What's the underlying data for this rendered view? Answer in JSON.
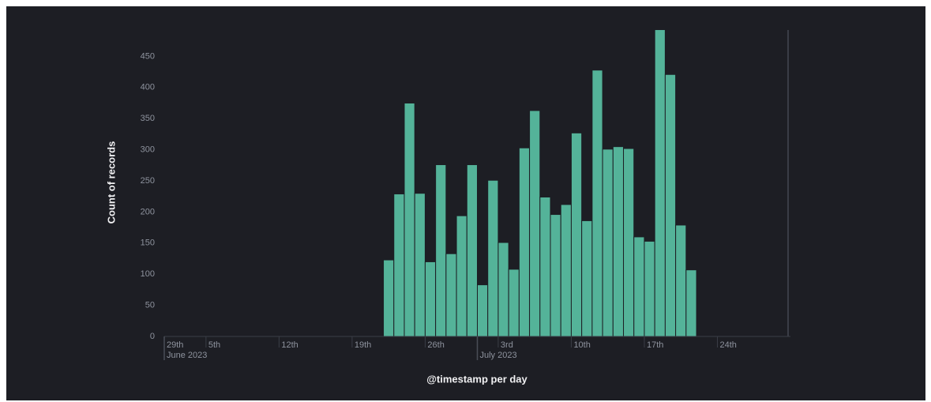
{
  "chart_data": {
    "type": "bar",
    "y_label": "Count of records",
    "x_label": "@timestamp per day",
    "color": "#54b399",
    "x": [
      "2023-06-22",
      "2023-06-23",
      "2023-06-24",
      "2023-06-25",
      "2023-06-26",
      "2023-06-27",
      "2023-06-28",
      "2023-06-29",
      "2023-06-30",
      "2023-07-01",
      "2023-07-02",
      "2023-07-03",
      "2023-07-04",
      "2023-07-05",
      "2023-07-06",
      "2023-07-07",
      "2023-07-08",
      "2023-07-09",
      "2023-07-10",
      "2023-07-11",
      "2023-07-12",
      "2023-07-13",
      "2023-07-14",
      "2023-07-15",
      "2023-07-16",
      "2023-07-17",
      "2023-07-18",
      "2023-07-19",
      "2023-07-20",
      "2023-07-21"
    ],
    "values": [
      123,
      229,
      375,
      230,
      120,
      276,
      133,
      194,
      276,
      83,
      251,
      151,
      108,
      303,
      363,
      224,
      196,
      212,
      327,
      186,
      428,
      301,
      305,
      302,
      160,
      153,
      493,
      421,
      179,
      107
    ],
    "xlim": [
      "2023-06-01",
      "2023-07-31"
    ],
    "xticks": [
      {
        "value": "2023-05-29",
        "label": "29th"
      },
      {
        "value": "2023-06-05",
        "label": "5th"
      },
      {
        "value": "2023-06-12",
        "label": "12th"
      },
      {
        "value": "2023-06-19",
        "label": "19th"
      },
      {
        "value": "2023-06-26",
        "label": "26th"
      },
      {
        "value": "2023-07-03",
        "label": "3rd"
      },
      {
        "value": "2023-07-10",
        "label": "10th"
      },
      {
        "value": "2023-07-17",
        "label": "17th"
      },
      {
        "value": "2023-07-24",
        "label": "24th"
      }
    ],
    "x_month_ticks": [
      {
        "value": "2023-06-01",
        "label": "June 2023"
      },
      {
        "value": "2023-07-01",
        "label": "July 2023"
      }
    ],
    "ylim": [
      0,
      500
    ],
    "yticks": [
      0,
      50,
      100,
      150,
      200,
      250,
      300,
      350,
      400,
      450
    ],
    "grid": false
  }
}
